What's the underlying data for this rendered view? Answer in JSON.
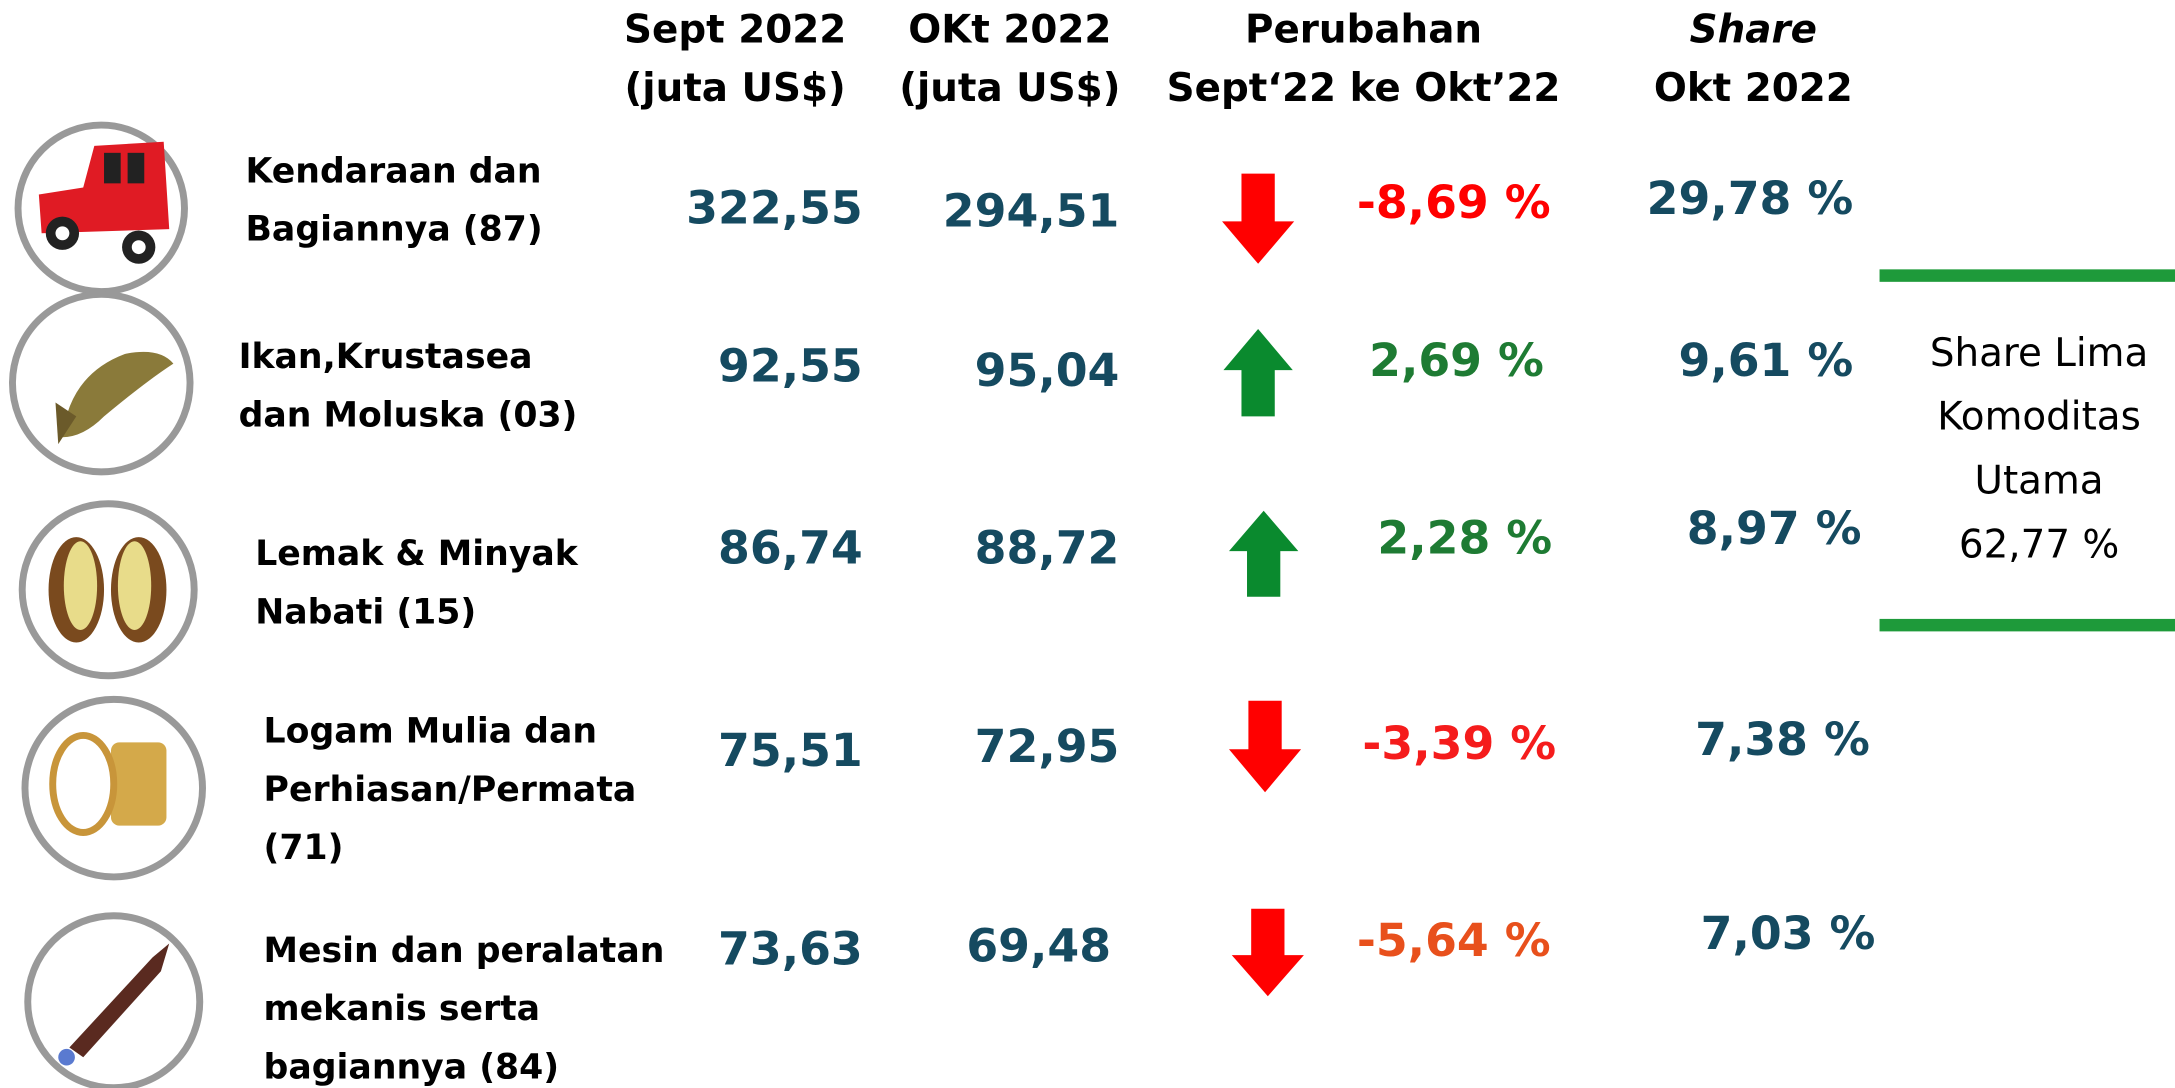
{
  "header": {
    "columns": [
      [
        "Sept 2022",
        "(juta US$)"
      ],
      [
        "OKt 2022",
        "(juta US$)"
      ],
      [
        "Perubahan",
        "Sept‘22 ke Okt’22"
      ],
      [
        "Share",
        "Okt 2022"
      ]
    ]
  },
  "table": {
    "rows": [
      {
        "name": [
          "Kendaraan dan",
          "Bagiannya (87)"
        ],
        "sept": "322,55",
        "okt": "294,51",
        "direction": "down",
        "change": "-8,69 %",
        "change_color": "#ff0000",
        "share": "29,78 %"
      },
      {
        "name": [
          "Ikan,Krustasea",
          "dan Moluska (03)"
        ],
        "sept": "92,55",
        "okt": "95,04",
        "direction": "up",
        "change": "2,69 %",
        "change_color": "#1e7b33",
        "share": "9,61 %"
      },
      {
        "name": [
          "Lemak & Minyak",
          "Nabati (15)"
        ],
        "sept": "86,74",
        "okt": "88,72",
        "direction": "up",
        "change": "2,28 %",
        "change_color": "#1e7b33",
        "share": "8,97 %"
      },
      {
        "name": [
          "Logam Mulia dan",
          "Perhiasan/Permata",
          "(71)"
        ],
        "sept": "75,51",
        "okt": "72,95",
        "direction": "down",
        "change": "-3,39 %",
        "change_color": "#f51c1c",
        "share": "7,38 %"
      },
      {
        "name": [
          "Mesin dan peralatan",
          "mekanis serta",
          "bagiannya (84)"
        ],
        "sept": "73,63",
        "okt": "69,48",
        "direction": "down",
        "change": "-5,64 %",
        "change_color": "#e8501c",
        "share": "7,03 %"
      }
    ]
  },
  "side_note": {
    "lines": [
      "Share Lima",
      "Komoditas",
      "Utama",
      "62,77 %"
    ]
  }
}
